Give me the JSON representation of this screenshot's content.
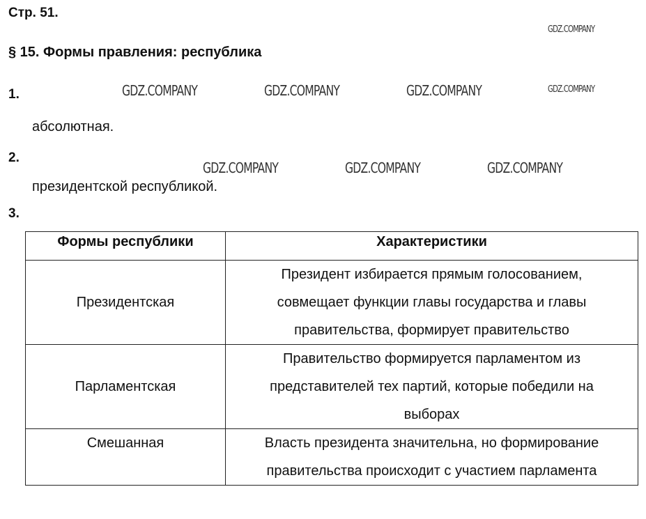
{
  "page": "Стр. 51.",
  "section_title": "§ 15. Формы правления: республика",
  "tasks": [
    {
      "number": "1.",
      "answer": "абсолютная."
    },
    {
      "number": "2.",
      "answer": "президентской республикой."
    },
    {
      "number": "3."
    }
  ],
  "table": {
    "headers": [
      "Формы республики",
      "Характеристики"
    ],
    "rows": [
      {
        "form": "Президентская",
        "lines": [
          "Президент избирается прямым голосованием,",
          "совмещает функции главы государства и главы",
          "правительства, формирует правительство"
        ]
      },
      {
        "form": "Парламентская",
        "lines": [
          "Правительство формируется парламентом из",
          "представителей тех партий, которые победили на",
          "выборах"
        ]
      },
      {
        "form": "Смешанная",
        "lines": [
          "Власть президента значительна, но формирование",
          "правительства происходит с участием парламента"
        ]
      }
    ]
  },
  "watermark": "GDZ.COMPANY"
}
